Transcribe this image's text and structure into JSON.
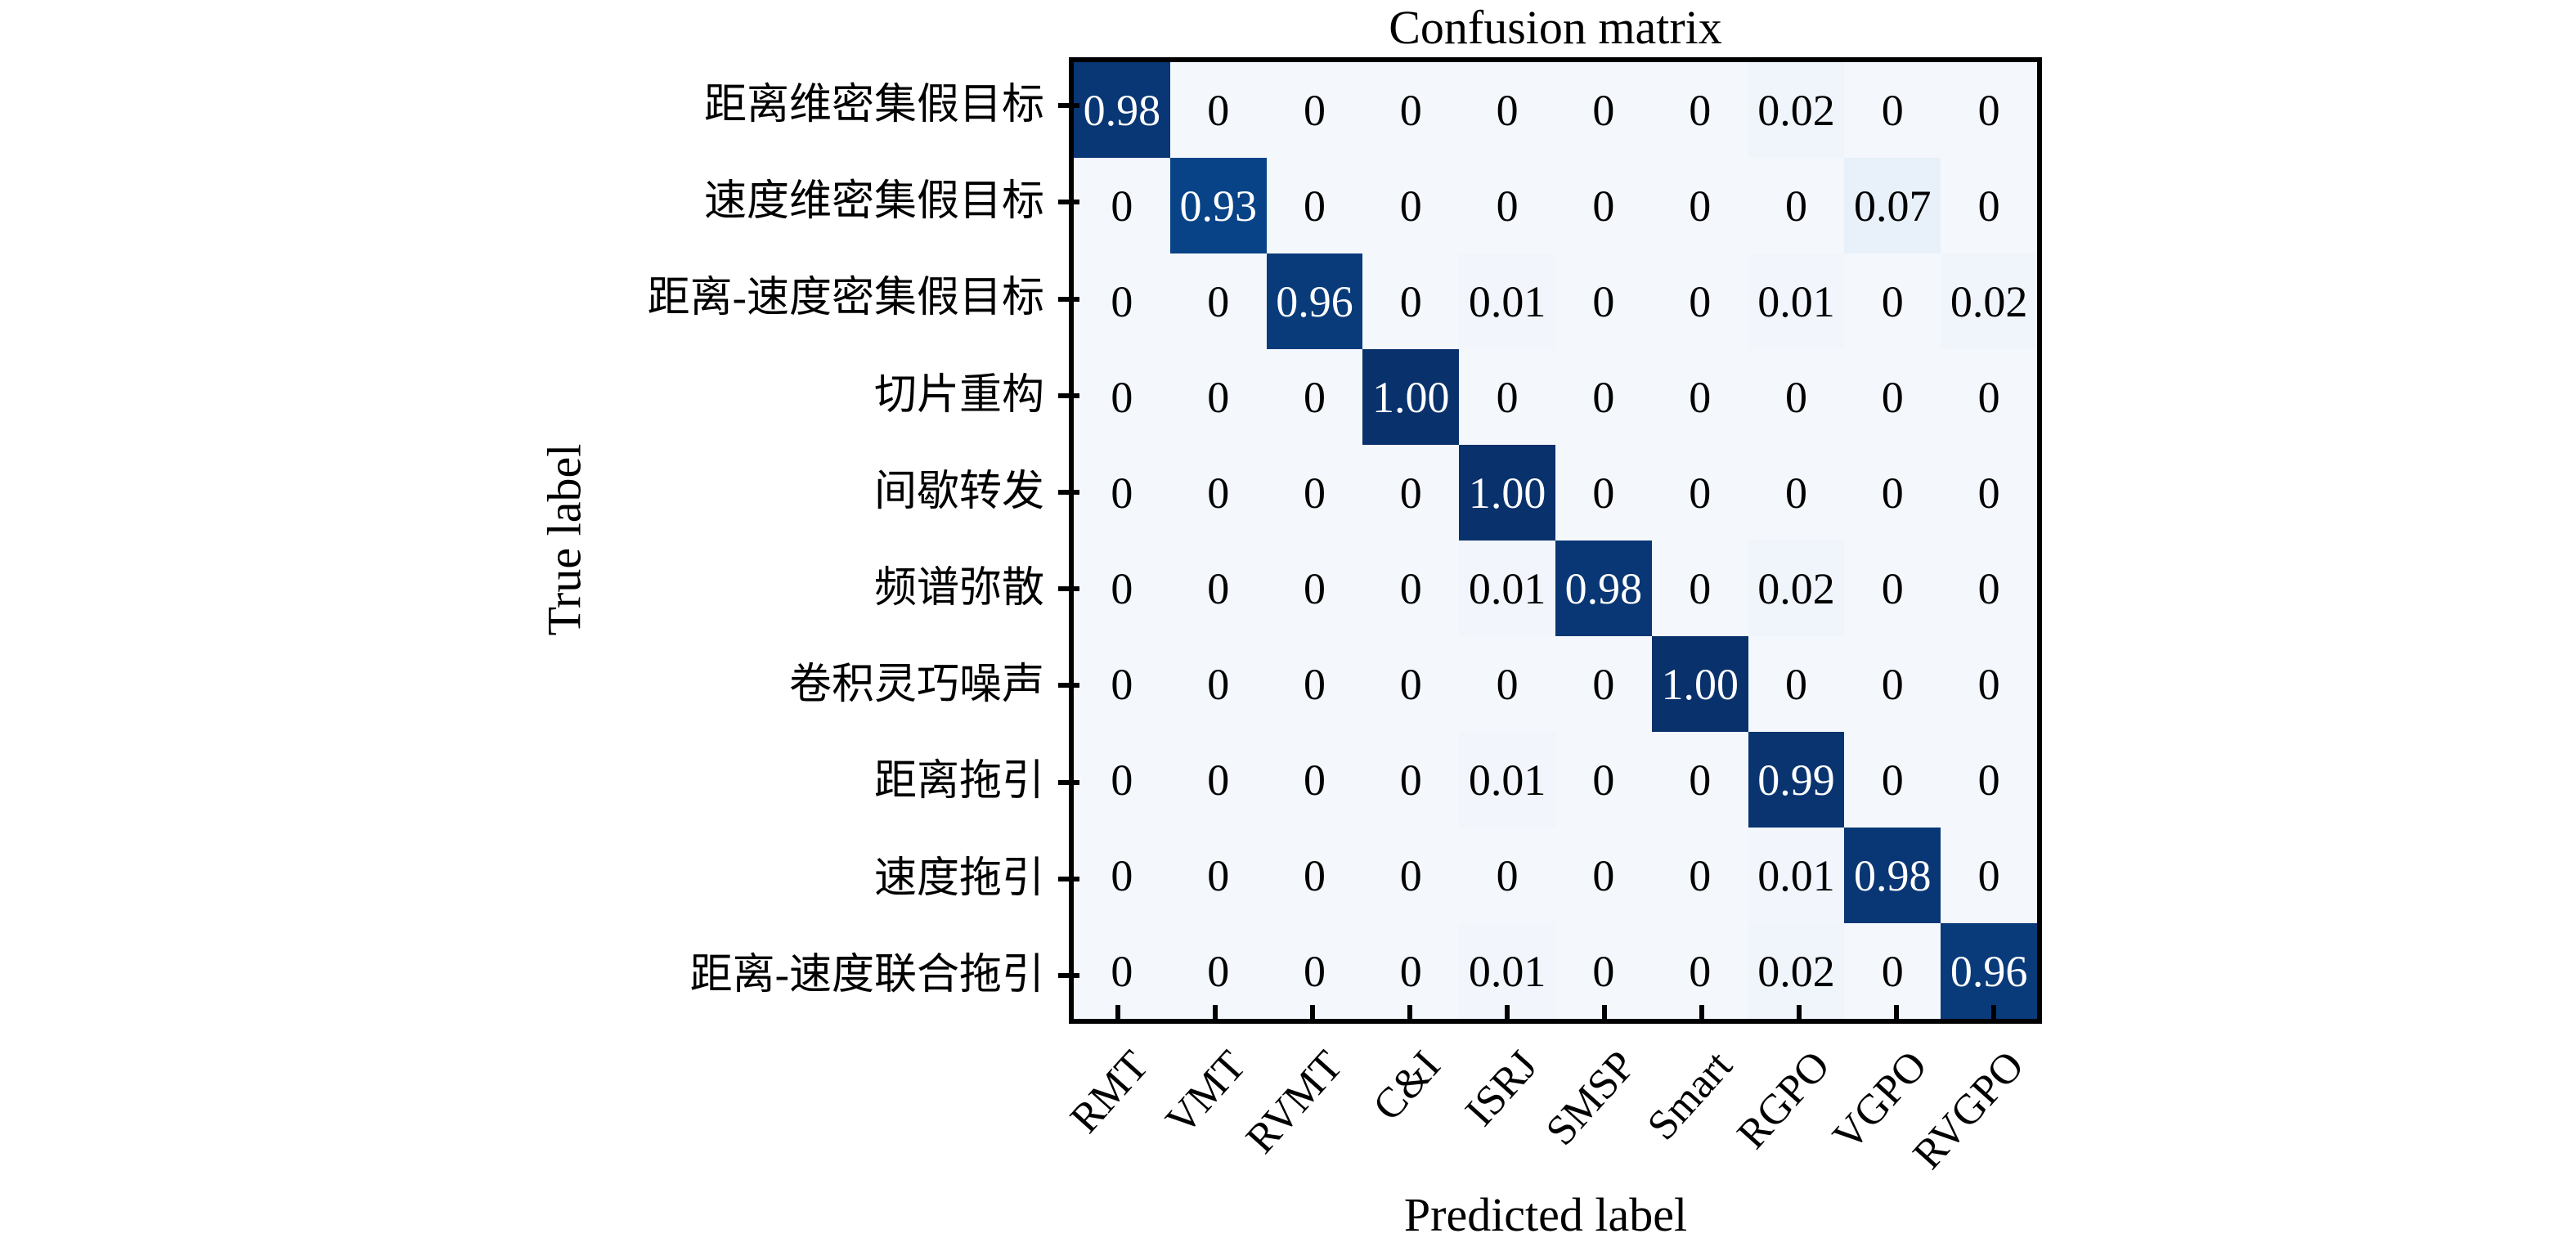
{
  "colors": {
    "background": "#ffffff",
    "spine": "#000000",
    "cmap_low": "#f4f7fc",
    "cmap_high": "#09316c",
    "cell_text_on_dark": "#ffffff",
    "cell_text_on_light": "#000000"
  },
  "chart_data": {
    "type": "heatmap",
    "title": "Confusion matrix",
    "xlabel": "Predicted label",
    "ylabel": "True label",
    "x_tick_labels": [
      "RMT",
      "VMT",
      "RVMT",
      "C&I",
      "ISRJ",
      "SMSP",
      "Smart",
      "RGPO",
      "VGPO",
      "RVGPO"
    ],
    "y_tick_labels": [
      "距离维密集假目标",
      "速度维密集假目标",
      "距离-速度密集假目标",
      "切片重构",
      "间歇转发",
      "频谱弥散",
      "卷积灵巧噪声",
      "距离拖引",
      "速度拖引",
      "距离-速度联合拖引"
    ],
    "cell_labels": [
      [
        "0.98",
        "0",
        "0",
        "0",
        "0",
        "0",
        "0",
        "0.02",
        "0",
        "0"
      ],
      [
        "0",
        "0.93",
        "0",
        "0",
        "0",
        "0",
        "0",
        "0",
        "0.07",
        "0"
      ],
      [
        "0",
        "0",
        "0.96",
        "0",
        "0.01",
        "0",
        "0",
        "0.01",
        "0",
        "0.02"
      ],
      [
        "0",
        "0",
        "0",
        "1.00",
        "0",
        "0",
        "0",
        "0",
        "0",
        "0"
      ],
      [
        "0",
        "0",
        "0",
        "0",
        "1.00",
        "0",
        "0",
        "0",
        "0",
        "0"
      ],
      [
        "0",
        "0",
        "0",
        "0",
        "0.01",
        "0.98",
        "0",
        "0.02",
        "0",
        "0"
      ],
      [
        "0",
        "0",
        "0",
        "0",
        "0",
        "0",
        "1.00",
        "0",
        "0",
        "0"
      ],
      [
        "0",
        "0",
        "0",
        "0",
        "0.01",
        "0",
        "0",
        "0.99",
        "0",
        "0"
      ],
      [
        "0",
        "0",
        "0",
        "0",
        "0",
        "0",
        "0",
        "0.01",
        "0.98",
        "0"
      ],
      [
        "0",
        "0",
        "0",
        "0",
        "0.01",
        "0",
        "0",
        "0.02",
        "0",
        "0.96"
      ]
    ],
    "values": [
      [
        0.98,
        0,
        0,
        0,
        0,
        0,
        0,
        0.02,
        0,
        0
      ],
      [
        0,
        0.93,
        0,
        0,
        0,
        0,
        0,
        0,
        0.07,
        0
      ],
      [
        0,
        0,
        0.96,
        0,
        0.01,
        0,
        0,
        0.01,
        0,
        0.02
      ],
      [
        0,
        0,
        0,
        1.0,
        0,
        0,
        0,
        0,
        0,
        0
      ],
      [
        0,
        0,
        0,
        0,
        1.0,
        0,
        0,
        0,
        0,
        0
      ],
      [
        0,
        0,
        0,
        0,
        0.01,
        0.98,
        0,
        0.02,
        0,
        0
      ],
      [
        0,
        0,
        0,
        0,
        0,
        0,
        1.0,
        0,
        0,
        0
      ],
      [
        0,
        0,
        0,
        0,
        0.01,
        0,
        0,
        0.99,
        0,
        0
      ],
      [
        0,
        0,
        0,
        0,
        0,
        0,
        0,
        0.01,
        0.98,
        0
      ],
      [
        0,
        0,
        0,
        0,
        0.01,
        0,
        0,
        0.02,
        0,
        0.96
      ]
    ],
    "value_range": [
      0,
      1
    ],
    "colormap": "Blues",
    "grid": false,
    "legend_position": "none",
    "x_tick_rotation_deg": 48
  }
}
